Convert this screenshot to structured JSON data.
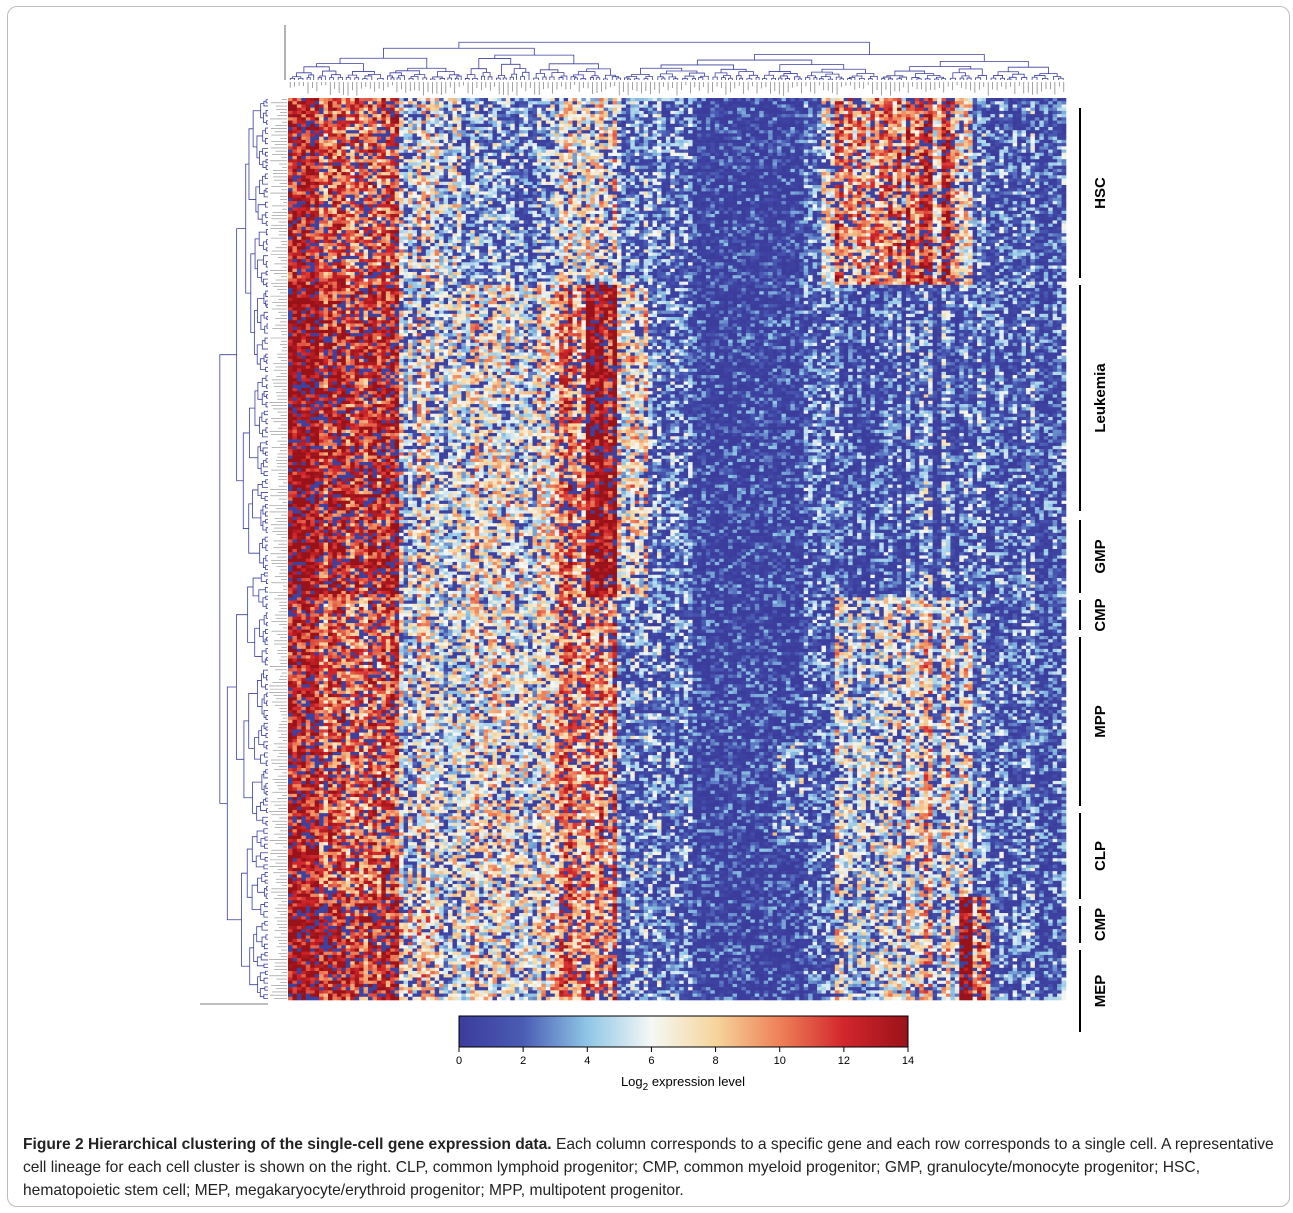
{
  "figure": {
    "caption_lead": "Figure 2 Hierarchical clustering of the single-cell gene expression data.",
    "caption_body": " Each column corresponds to a specific gene and each row corresponds to a single cell. A representative cell lineage for each cell cluster is shown on the right. CLP, common lymphoid progenitor; CMP, common myeloid progenitor; GMP, granulocyte/monocyte progenitor; HSC, hematopoietic stem cell; MEP, megakaryocyte/erythroid progenitor; MPP, multipotent progenitor."
  },
  "chart_data": {
    "type": "heatmap",
    "title": "",
    "n_rows": 280,
    "n_columns": 175,
    "rows": "single cells",
    "columns": "genes",
    "dendrograms": [
      "top (genes)",
      "left (cells)"
    ],
    "cluster_labels": [
      "HSC",
      "Leukemia",
      "GMP",
      "CMP",
      "MPP",
      "CLP",
      "CMP",
      "MEP"
    ],
    "colorbar": {
      "title": "Log2 expression level",
      "title_main": "Log",
      "title_sub": "2",
      "title_rest": " expression level",
      "ticks": [
        0,
        2,
        4,
        6,
        8,
        10,
        12,
        14
      ],
      "range": [
        0,
        14
      ],
      "colors": [
        "#3b3c9c",
        "#4a5cb4",
        "#8fc6e6",
        "#f5f8f5",
        "#f6d59c",
        "#ee8158",
        "#d2262c",
        "#9a1219"
      ]
    }
  }
}
